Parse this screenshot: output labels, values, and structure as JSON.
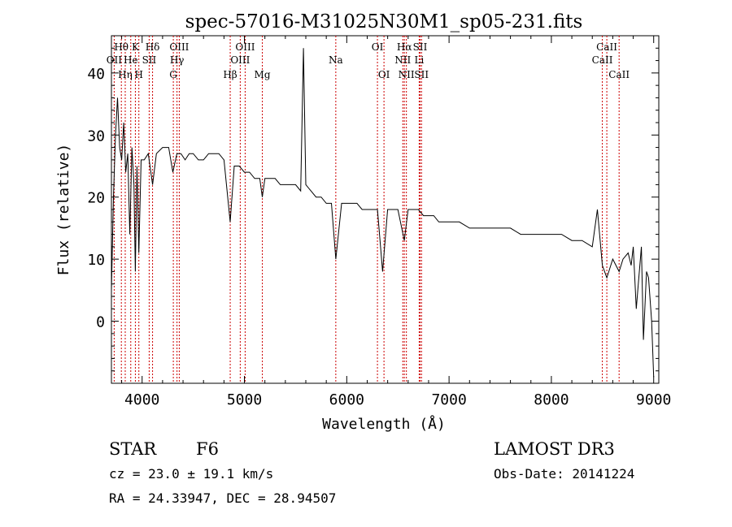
{
  "chart_data": {
    "type": "line",
    "title": "spec-57016-M31025N30M1_sp05-231.fits",
    "xlabel": "Wavelength (Å)",
    "ylabel": "Flux (relative)",
    "xlim": [
      3700,
      9050
    ],
    "ylim": [
      -10,
      46
    ],
    "xticks": [
      4000,
      5000,
      6000,
      7000,
      8000,
      9000
    ],
    "yticks": [
      0,
      10,
      20,
      30,
      40
    ],
    "grid": false,
    "line_color": "#000000",
    "marker_color": "#cc0000",
    "series": [
      {
        "x": [
          3700,
          3720,
          3740,
          3760,
          3780,
          3800,
          3820,
          3840,
          3860,
          3880,
          3900,
          3920,
          3934,
          3950,
          3968,
          3990,
          4020,
          4060,
          4102,
          4140,
          4200,
          4260,
          4300,
          4340,
          4380,
          4420,
          4460,
          4500,
          4550,
          4600,
          4650,
          4700,
          4750,
          4800,
          4861,
          4900,
          4950,
          5000,
          5050,
          5100,
          5150,
          5175,
          5200,
          5250,
          5300,
          5350,
          5400,
          5450,
          5500,
          5550,
          5577,
          5600,
          5650,
          5700,
          5750,
          5800,
          5850,
          5893,
          5950,
          6000,
          6050,
          6100,
          6150,
          6200,
          6250,
          6300,
          6350,
          6400,
          6450,
          6500,
          6563,
          6600,
          6650,
          6700,
          6750,
          6800,
          6850,
          6900,
          6950,
          7000,
          7100,
          7200,
          7300,
          7400,
          7500,
          7600,
          7700,
          7800,
          7900,
          8000,
          8100,
          8200,
          8300,
          8400,
          8450,
          8498,
          8542,
          8600,
          8662,
          8700,
          8750,
          8780,
          8800,
          8830,
          8850,
          8880,
          8900,
          8930,
          8950,
          8980,
          9000
        ],
        "y": [
          5,
          20,
          30,
          36,
          28,
          26,
          32,
          24,
          27,
          14,
          28,
          22,
          8,
          25,
          11,
          26,
          26,
          27,
          22,
          27,
          28,
          28,
          24,
          27,
          27,
          26,
          27,
          27,
          26,
          26,
          27,
          27,
          27,
          26,
          16,
          25,
          25,
          24,
          24,
          23,
          23,
          20,
          23,
          23,
          23,
          22,
          22,
          22,
          22,
          21,
          44,
          22,
          21,
          20,
          20,
          19,
          19,
          10,
          19,
          19,
          19,
          19,
          18,
          18,
          18,
          18,
          8,
          18,
          18,
          18,
          13,
          18,
          18,
          18,
          17,
          17,
          17,
          16,
          16,
          16,
          16,
          15,
          15,
          15,
          15,
          15,
          14,
          14,
          14,
          14,
          14,
          13,
          13,
          12,
          18,
          9,
          7,
          10,
          8,
          10,
          11,
          9,
          12,
          2,
          6,
          12,
          -3,
          8,
          7,
          0,
          -9
        ]
      }
    ],
    "lines": [
      {
        "name": "Hθ",
        "wavelength": 3797,
        "row": 1
      },
      {
        "name": "OII",
        "wavelength": 3727,
        "row": 2
      },
      {
        "name": "Hη",
        "wavelength": 3835,
        "row": 3
      },
      {
        "name": "K",
        "wavelength": 3934,
        "row": 1
      },
      {
        "name": "He",
        "wavelength": 3889,
        "row": 2
      },
      {
        "name": "H",
        "wavelength": 3968,
        "row": 3
      },
      {
        "name": "Hδ",
        "wavelength": 4102,
        "row": 1
      },
      {
        "name": "SII",
        "wavelength": 4069,
        "row": 2
      },
      {
        "name": "OIII",
        "wavelength": 4363,
        "row": 1
      },
      {
        "name": "Hγ",
        "wavelength": 4341,
        "row": 2
      },
      {
        "name": "G",
        "wavelength": 4305,
        "row": 3
      },
      {
        "name": "Hβ",
        "wavelength": 4861,
        "row": 3
      },
      {
        "name": "OIII",
        "wavelength": 5007,
        "row": 1
      },
      {
        "name": "OIII",
        "wavelength": 4959,
        "row": 2
      },
      {
        "name": "Mg",
        "wavelength": 5175,
        "row": 3
      },
      {
        "name": "Na",
        "wavelength": 5893,
        "row": 2
      },
      {
        "name": "OI",
        "wavelength": 6300,
        "row": 1
      },
      {
        "name": "OI",
        "wavelength": 6364,
        "row": 3
      },
      {
        "name": "Hα",
        "wavelength": 6563,
        "row": 1
      },
      {
        "name": "NII",
        "wavelength": 6548,
        "row": 2
      },
      {
        "name": "NII",
        "wavelength": 6583,
        "row": 3
      },
      {
        "name": "SII",
        "wavelength": 6717,
        "row": 1
      },
      {
        "name": "Li",
        "wavelength": 6708,
        "row": 2
      },
      {
        "name": "SII",
        "wavelength": 6731,
        "row": 3
      },
      {
        "name": "CaII",
        "wavelength": 8542,
        "row": 1
      },
      {
        "name": "CaII",
        "wavelength": 8498,
        "row": 2
      },
      {
        "name": "CaII",
        "wavelength": 8662,
        "row": 3
      }
    ]
  },
  "info": {
    "class": "STAR",
    "subclass": "F6",
    "survey": "LAMOST DR3",
    "redshift": "cz = 23.0 ± 19.1 km/s",
    "obs_date": "Obs-Date: 20141224",
    "coords": "RA =  24.33947, DEC =  28.94507"
  }
}
